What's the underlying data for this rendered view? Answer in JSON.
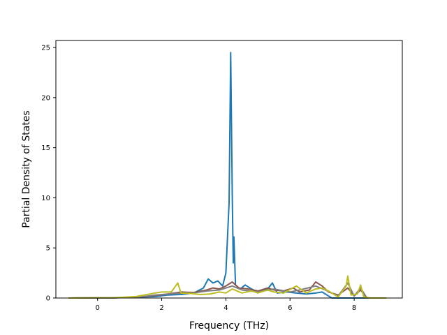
{
  "chart_data": {
    "type": "line",
    "title": "",
    "xlabel": "Frequency (THz)",
    "ylabel": "Partial Density of States",
    "xlim": [
      -1.3,
      9.5
    ],
    "ylim": [
      0,
      25.7
    ],
    "x_ticks": [
      0,
      2,
      4,
      6,
      8
    ],
    "y_ticks": [
      0,
      5,
      10,
      15,
      20,
      25
    ],
    "grid": false,
    "legend": "none",
    "series": [
      {
        "color": "#1f77b4",
        "points": [
          [
            -0.9,
            0
          ],
          [
            0.5,
            0.02
          ],
          [
            1.2,
            0.08
          ],
          [
            1.8,
            0.15
          ],
          [
            2.2,
            0.3
          ],
          [
            2.6,
            0.35
          ],
          [
            3.0,
            0.5
          ],
          [
            3.3,
            1.0
          ],
          [
            3.45,
            1.9
          ],
          [
            3.6,
            1.5
          ],
          [
            3.75,
            1.7
          ],
          [
            3.9,
            1.2
          ],
          [
            4.0,
            2.5
          ],
          [
            4.05,
            6.0
          ],
          [
            4.1,
            9.5
          ],
          [
            4.15,
            24.5
          ],
          [
            4.2,
            10.0
          ],
          [
            4.23,
            3.5
          ],
          [
            4.25,
            6.1
          ],
          [
            4.3,
            1.3
          ],
          [
            4.45,
            0.9
          ],
          [
            4.6,
            1.3
          ],
          [
            4.8,
            0.9
          ],
          [
            5.0,
            0.6
          ],
          [
            5.3,
            0.9
          ],
          [
            5.45,
            1.5
          ],
          [
            5.6,
            0.5
          ],
          [
            5.9,
            0.6
          ],
          [
            6.2,
            0.5
          ],
          [
            6.5,
            0.4
          ],
          [
            6.8,
            0.5
          ],
          [
            7.0,
            0.6
          ],
          [
            7.15,
            0.3
          ],
          [
            7.3,
            0
          ],
          [
            9.0,
            0
          ]
        ]
      },
      {
        "color": "#8c564b",
        "points": [
          [
            -0.9,
            0
          ],
          [
            0.5,
            0.02
          ],
          [
            1.3,
            0.1
          ],
          [
            1.8,
            0.25
          ],
          [
            2.2,
            0.4
          ],
          [
            2.6,
            0.6
          ],
          [
            3.0,
            0.55
          ],
          [
            3.4,
            0.8
          ],
          [
            3.6,
            1.0
          ],
          [
            3.8,
            0.9
          ],
          [
            4.0,
            1.2
          ],
          [
            4.2,
            1.6
          ],
          [
            4.4,
            1.0
          ],
          [
            4.7,
            0.9
          ],
          [
            5.0,
            0.7
          ],
          [
            5.3,
            1.0
          ],
          [
            5.5,
            0.8
          ],
          [
            5.8,
            0.7
          ],
          [
            6.1,
            1.0
          ],
          [
            6.3,
            0.6
          ],
          [
            6.6,
            0.8
          ],
          [
            6.8,
            1.6
          ],
          [
            7.0,
            1.2
          ],
          [
            7.2,
            0.6
          ],
          [
            7.5,
            0.3
          ],
          [
            7.8,
            1.0
          ],
          [
            8.0,
            0.2
          ],
          [
            8.2,
            0.8
          ],
          [
            8.4,
            0
          ],
          [
            9.0,
            0
          ]
        ]
      },
      {
        "color": "#7f7f7f",
        "points": [
          [
            -0.9,
            0
          ],
          [
            0.5,
            0.02
          ],
          [
            1.3,
            0.1
          ],
          [
            1.8,
            0.3
          ],
          [
            2.2,
            0.4
          ],
          [
            2.6,
            0.5
          ],
          [
            3.0,
            0.5
          ],
          [
            3.4,
            0.7
          ],
          [
            3.8,
            0.8
          ],
          [
            4.0,
            1.0
          ],
          [
            4.2,
            1.2
          ],
          [
            4.5,
            0.8
          ],
          [
            5.0,
            0.6
          ],
          [
            5.5,
            0.9
          ],
          [
            6.0,
            0.6
          ],
          [
            6.3,
            0.8
          ],
          [
            6.8,
            1.2
          ],
          [
            7.1,
            0.8
          ],
          [
            7.5,
            0.2
          ],
          [
            7.8,
            1.5
          ],
          [
            8.0,
            0.2
          ],
          [
            8.2,
            1.0
          ],
          [
            8.4,
            0
          ],
          [
            9.0,
            0
          ]
        ]
      },
      {
        "color": "#bcbd22",
        "points": [
          [
            -0.9,
            0
          ],
          [
            0.5,
            0.03
          ],
          [
            1.2,
            0.15
          ],
          [
            1.8,
            0.5
          ],
          [
            2.0,
            0.6
          ],
          [
            2.3,
            0.6
          ],
          [
            2.5,
            1.5
          ],
          [
            2.6,
            0.5
          ],
          [
            2.9,
            0.45
          ],
          [
            3.2,
            0.35
          ],
          [
            3.5,
            0.4
          ],
          [
            3.8,
            0.6
          ],
          [
            4.0,
            0.5
          ],
          [
            4.2,
            0.9
          ],
          [
            4.5,
            0.5
          ],
          [
            4.8,
            0.7
          ],
          [
            5.0,
            0.5
          ],
          [
            5.3,
            0.8
          ],
          [
            5.5,
            0.6
          ],
          [
            5.8,
            0.5
          ],
          [
            6.2,
            1.2
          ],
          [
            6.5,
            0.5
          ],
          [
            6.8,
            0.9
          ],
          [
            7.0,
            1.0
          ],
          [
            7.2,
            0.7
          ],
          [
            7.5,
            0.1
          ],
          [
            7.75,
            1.2
          ],
          [
            7.8,
            2.2
          ],
          [
            7.9,
            0.3
          ],
          [
            8.1,
            0.4
          ],
          [
            8.2,
            1.3
          ],
          [
            8.3,
            0.1
          ],
          [
            8.5,
            0
          ],
          [
            9.0,
            0
          ]
        ]
      }
    ]
  }
}
